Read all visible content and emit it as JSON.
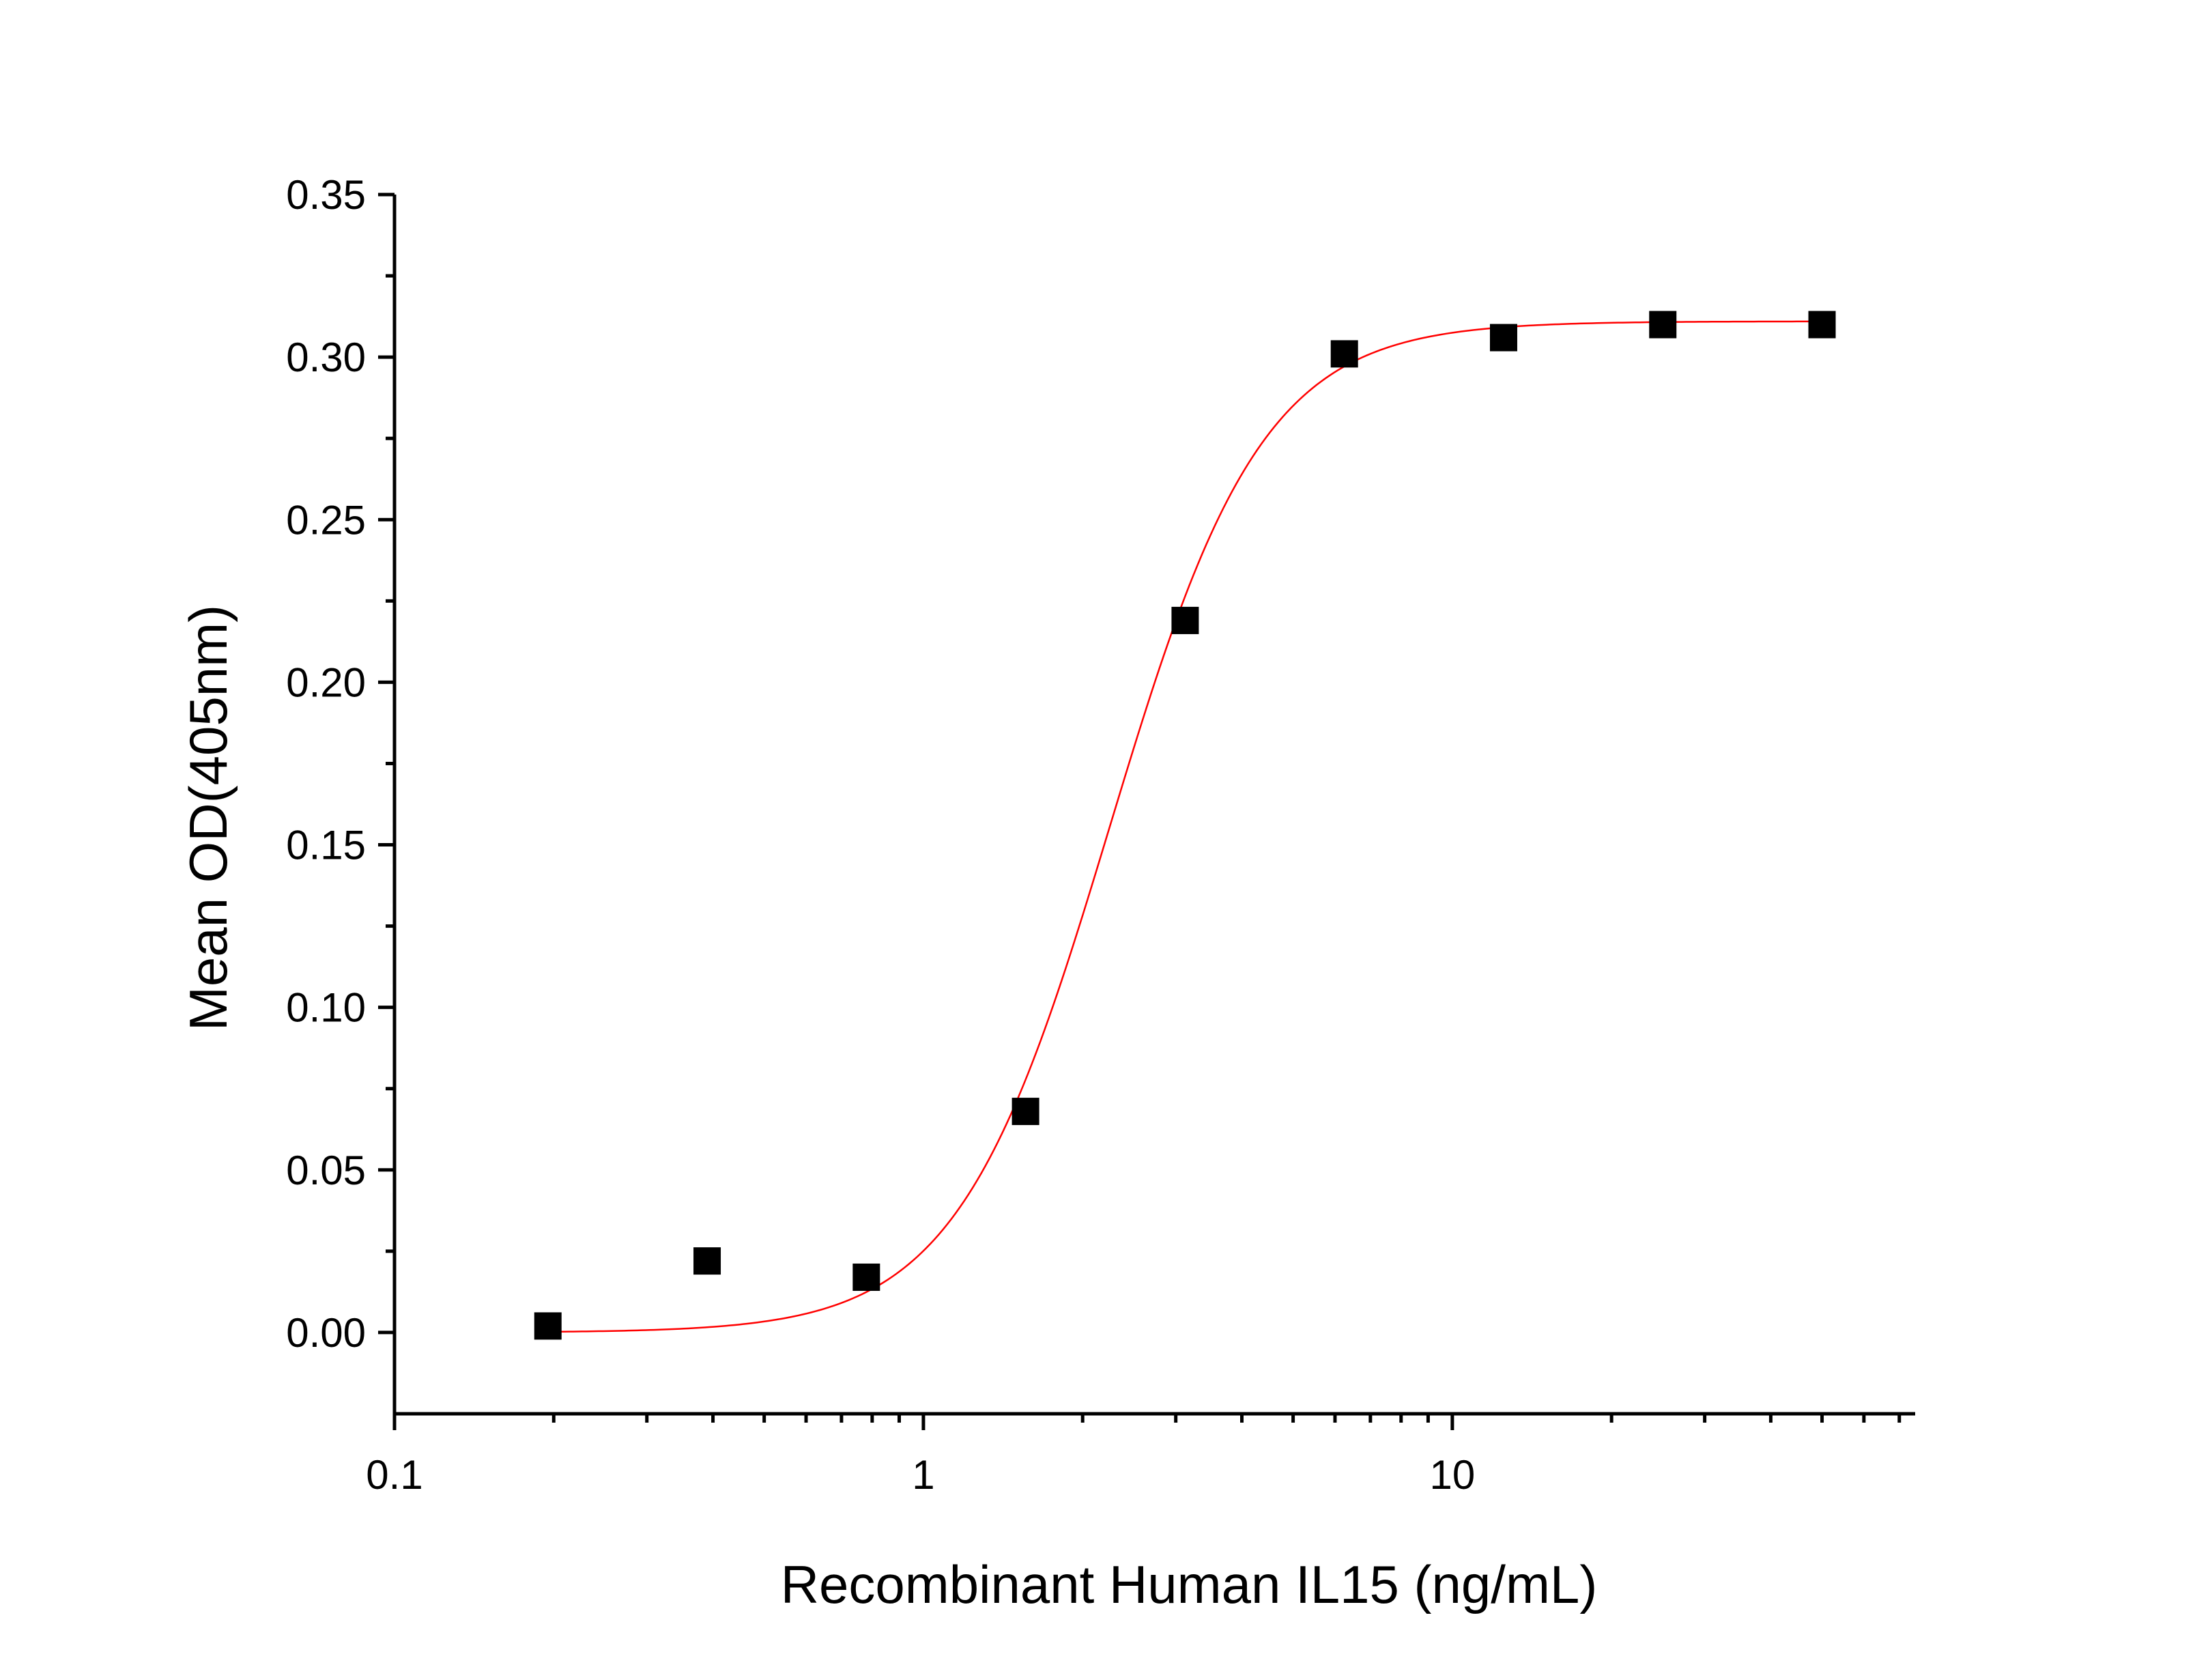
{
  "chart_data": {
    "type": "scatter",
    "title": "",
    "xlabel": "Recombinant Human IL15 (ng/mL)",
    "ylabel": "Mean OD(405nm)",
    "x_scale": "log",
    "xlim": [
      0.1,
      75
    ],
    "ylim": [
      -0.025,
      0.35
    ],
    "x_ticks": [
      {
        "value": 0.1,
        "label": "0.1"
      },
      {
        "value": 1,
        "label": "1"
      },
      {
        "value": 10,
        "label": "10"
      }
    ],
    "y_ticks": [
      {
        "value": 0.0,
        "label": "0.00"
      },
      {
        "value": 0.05,
        "label": "0.05"
      },
      {
        "value": 0.1,
        "label": "0.10"
      },
      {
        "value": 0.15,
        "label": "0.15"
      },
      {
        "value": 0.2,
        "label": "0.20"
      },
      {
        "value": 0.25,
        "label": "0.25"
      },
      {
        "value": 0.3,
        "label": "0.30"
      },
      {
        "value": 0.35,
        "label": "0.35"
      }
    ],
    "grid": false,
    "legend": "none",
    "series": [
      {
        "type": "scatter",
        "marker": "square",
        "color": "#000000",
        "x": [
          0.195,
          0.39,
          0.78,
          1.56,
          3.125,
          6.25,
          12.5,
          25,
          50
        ],
        "y": [
          0.002,
          0.022,
          0.017,
          0.068,
          0.219,
          0.301,
          0.306,
          0.31,
          0.31
        ]
      },
      {
        "type": "fit",
        "color": "#ff0000",
        "model": "4PL",
        "bottom": 0.0,
        "top": 0.311,
        "ec50": 2.25,
        "hill": 3.0,
        "x_range": [
          0.195,
          50
        ]
      }
    ]
  }
}
